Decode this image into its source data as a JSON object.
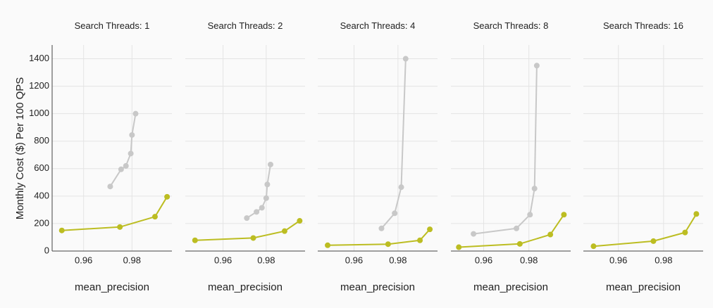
{
  "chart_data": {
    "type": "line",
    "ylabel": "Monthly Cost ($) Per 100 QPS",
    "xlabel": "mean_precision",
    "ylim": [
      0,
      1500
    ],
    "yticks": [
      0,
      200,
      400,
      600,
      800,
      1000,
      1200,
      1400
    ],
    "xticks": [
      0.96,
      0.98
    ],
    "grid": true,
    "series_colors": [
      "#c8c8c8",
      "#bcbd22"
    ],
    "panels": [
      {
        "title": "Search Threads: 1",
        "xlim": [
          0.947,
          0.9965
        ],
        "series": [
          {
            "x": [
              0.971,
              0.9755,
              0.9775,
              0.9795,
              0.98,
              0.9815
            ],
            "y": [
              470,
              595,
              620,
              710,
              845,
              1000
            ]
          },
          {
            "x": [
              0.951,
              0.975,
              0.9895,
              0.9945
            ],
            "y": [
              150,
              175,
              250,
              395
            ]
          }
        ]
      },
      {
        "title": "Search Threads: 2",
        "xlim": [
          0.9425,
          0.998
        ],
        "series": [
          {
            "x": [
              0.971,
              0.9755,
              0.978,
              0.98,
              0.9805,
              0.982
            ],
            "y": [
              240,
              285,
              315,
              385,
              485,
              630
            ]
          },
          {
            "x": [
              0.947,
              0.974,
              0.9885,
              0.9955
            ],
            "y": [
              78,
              95,
              145,
              220
            ]
          }
        ]
      },
      {
        "title": "Search Threads: 4",
        "xlim": [
          0.9435,
          0.998
        ],
        "series": [
          {
            "x": [
              0.9725,
              0.9785,
              0.9815,
              0.9835
            ],
            "y": [
              165,
              275,
              465,
              1400
            ]
          },
          {
            "x": [
              0.948,
              0.9755,
              0.99,
              0.9945
            ],
            "y": [
              42,
              50,
              78,
              158
            ]
          }
        ]
      },
      {
        "title": "Search Threads: 8",
        "xlim": [
          0.9455,
          0.9985
        ],
        "series": [
          {
            "x": [
              0.9555,
              0.9745,
              0.9805,
              0.9825,
              0.9835
            ],
            "y": [
              125,
              165,
              265,
              455,
              1350
            ]
          },
          {
            "x": [
              0.949,
              0.976,
              0.9895,
              0.9955
            ],
            "y": [
              28,
              52,
              120,
              265
            ]
          }
        ]
      },
      {
        "title": "Search Threads: 16",
        "xlim": [
          0.9445,
          0.9975
        ],
        "series": [
          {
            "x": [
              0.949,
              0.9755,
              0.9895,
              0.9945
            ],
            "y": [
              35,
              72,
              135,
              270
            ]
          }
        ]
      }
    ]
  }
}
